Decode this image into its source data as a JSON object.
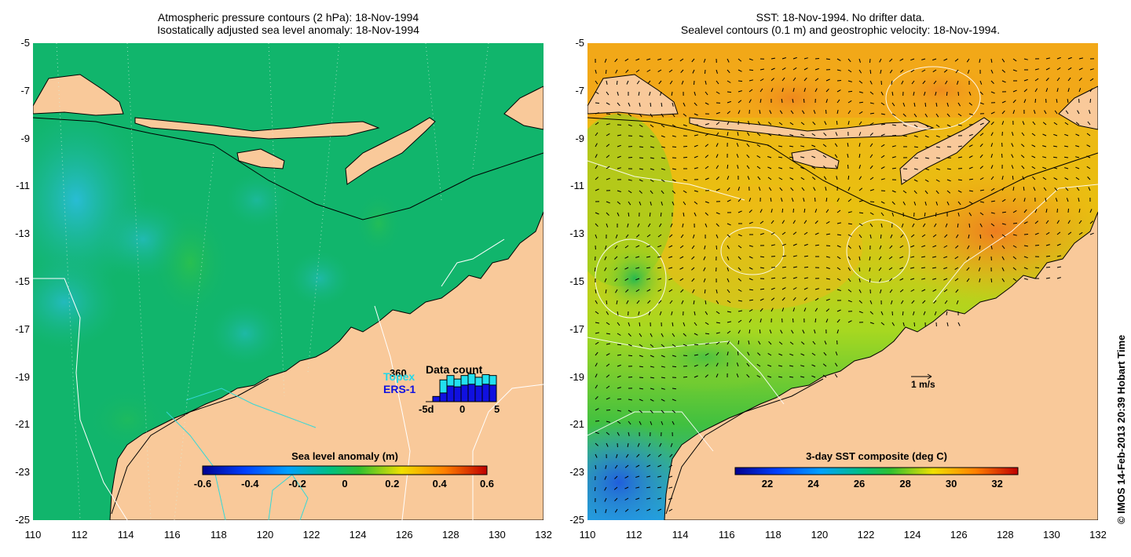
{
  "left_panel": {
    "title_line1": "Atmospheric pressure contours (2 hPa): 18-Nov-1994",
    "title_line2": "Isostatically adjusted sea level anomaly: 18-Nov-1994",
    "colorbar": {
      "title": "Sea level anomaly (m)",
      "ticks": [
        "-0.6",
        "-0.4",
        "-0.2",
        "0",
        "0.2",
        "0.4",
        "0.6"
      ],
      "range": [
        -0.6,
        0.6
      ]
    },
    "inset": {
      "title": "Data count",
      "max_label": "360",
      "series1": "Topex",
      "series2": "ERS-1",
      "axis_labels": [
        "-5d",
        "0",
        "5"
      ],
      "topex_counts": [
        0,
        0,
        250,
        300,
        260,
        300,
        320,
        280,
        310,
        300
      ],
      "ers_counts": [
        0,
        60,
        100,
        180,
        170,
        190,
        200,
        180,
        200,
        190
      ]
    }
  },
  "right_panel": {
    "title_line1": "SST: 18-Nov-1994. No drifter data.",
    "title_line2": "Sealevel contours (0.1 m) and geostrophic velocity: 18-Nov-1994.",
    "colorbar": {
      "title": "3-day SST composite (deg C)",
      "ticks": [
        "22",
        "24",
        "26",
        "28",
        "30",
        "32"
      ],
      "range": [
        20.6,
        32.9
      ]
    },
    "velocity_scale_label": "1 m/s"
  },
  "axes": {
    "lat_labels": [
      "-5",
      "-7",
      "-9",
      "-11",
      "-13",
      "-15",
      "-17",
      "-19",
      "-21",
      "-23",
      "-25"
    ],
    "lon_labels": [
      "110",
      "112",
      "114",
      "116",
      "118",
      "120",
      "122",
      "124",
      "126",
      "128",
      "130",
      "132"
    ],
    "lat_range": [
      -25,
      -5
    ],
    "lon_range": [
      110,
      132
    ]
  },
  "credit": "© IMOS 14-Feb-2013 20:39 Hobart Time",
  "colors": {
    "land": "#f9c99a",
    "ocean_mid": "#10b56e",
    "ocean_low": "#22c8c8",
    "sst_warm": "#f2a818",
    "sst_hot": "#ef7c20",
    "sst_cool": "#7ad322",
    "sst_cold": "#1f62e0"
  }
}
